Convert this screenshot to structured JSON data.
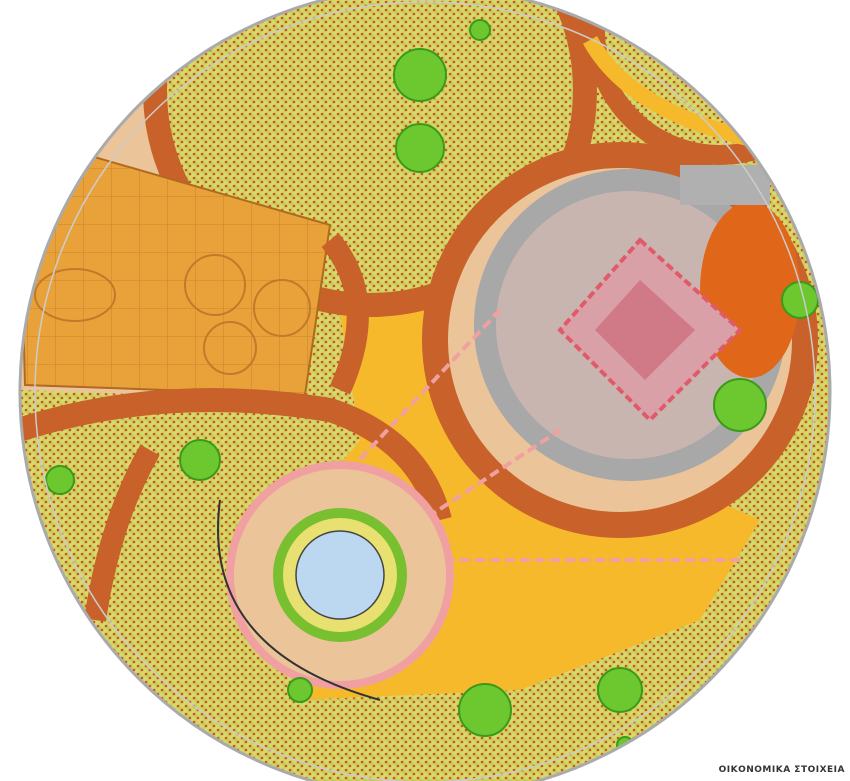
{
  "caption": "ΟΙΚΟΝΟΜΙΚΑ ΣΤΟΙΧΕΙΑ"
}
